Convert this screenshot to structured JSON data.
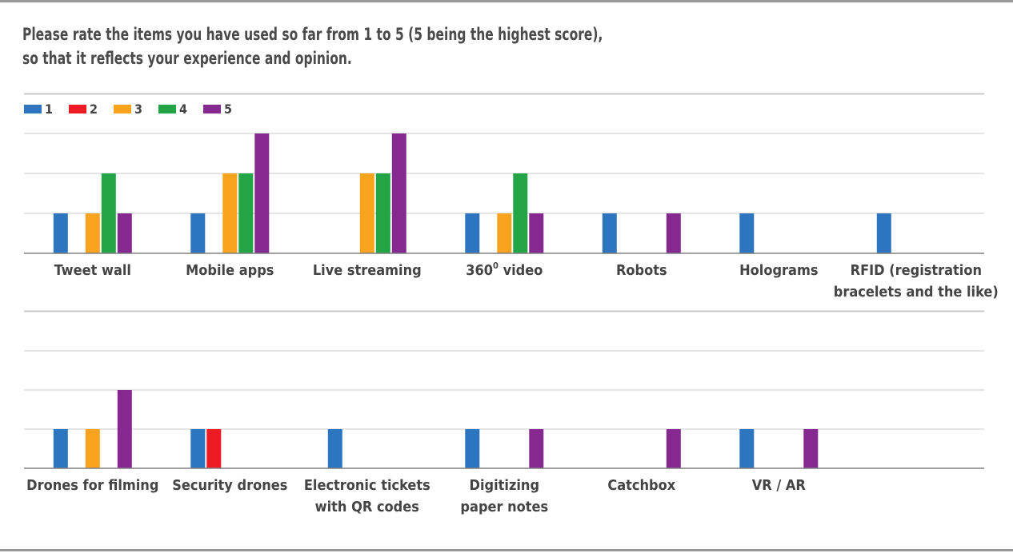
{
  "title_lines": [
    "Please rate the items you have used so far from 1 to 5 (5 being the highest score),",
    "so that it reflects your experience and opinion."
  ],
  "colors": {
    "1": "#2e75c0",
    "2": "#ed1c24",
    "3": "#f9a31e",
    "4": "#23a546",
    "5": "#85288f",
    "grid": "#c8c8c8",
    "axis": "#808080",
    "text": "#444444"
  },
  "chart_data": {
    "type": "bar",
    "legend": {
      "placement": "top-left",
      "entries": [
        "1",
        "2",
        "3",
        "4",
        "5"
      ]
    },
    "series": [
      {
        "name": "1"
      },
      {
        "name": "2"
      },
      {
        "name": "3"
      },
      {
        "name": "4"
      },
      {
        "name": "5"
      }
    ],
    "ylim": [
      0,
      3
    ],
    "grid": true,
    "panels": [
      {
        "categories": [
          {
            "lines": [
              "Tweet wall"
            ],
            "values": [
              1,
              0,
              1,
              2,
              1
            ]
          },
          {
            "lines": [
              "Mobile apps"
            ],
            "values": [
              1,
              0,
              2,
              2,
              3
            ]
          },
          {
            "lines": [
              "Live streaming"
            ],
            "values": [
              0,
              0,
              2,
              2,
              3
            ]
          },
          {
            "lines": [
              "360",
              "video"
            ],
            "sup": "0",
            "values": [
              1,
              0,
              1,
              2,
              1
            ]
          },
          {
            "lines": [
              "Robots"
            ],
            "values": [
              1,
              0,
              0,
              0,
              1
            ]
          },
          {
            "lines": [
              "Holograms"
            ],
            "values": [
              1,
              0,
              0,
              0,
              0
            ]
          },
          {
            "lines": [
              "RFID (registration",
              "bracelets and the like)"
            ],
            "values": [
              1,
              0,
              0,
              0,
              0
            ]
          }
        ]
      },
      {
        "categories": [
          {
            "lines": [
              "Drones for filming"
            ],
            "values": [
              1,
              0,
              1,
              0,
              2
            ]
          },
          {
            "lines": [
              "Security drones"
            ],
            "values": [
              1,
              1,
              0,
              0,
              0
            ]
          },
          {
            "lines": [
              "Electronic tickets",
              "with QR codes"
            ],
            "values": [
              1,
              0,
              0,
              0,
              0
            ]
          },
          {
            "lines": [
              "Digitizing",
              "paper notes"
            ],
            "values": [
              1,
              0,
              0,
              0,
              1
            ]
          },
          {
            "lines": [
              "Catchbox"
            ],
            "values": [
              0,
              0,
              0,
              0,
              1
            ]
          },
          {
            "lines": [
              "VR / AR"
            ],
            "values": [
              1,
              0,
              0,
              0,
              1
            ]
          }
        ]
      }
    ]
  }
}
